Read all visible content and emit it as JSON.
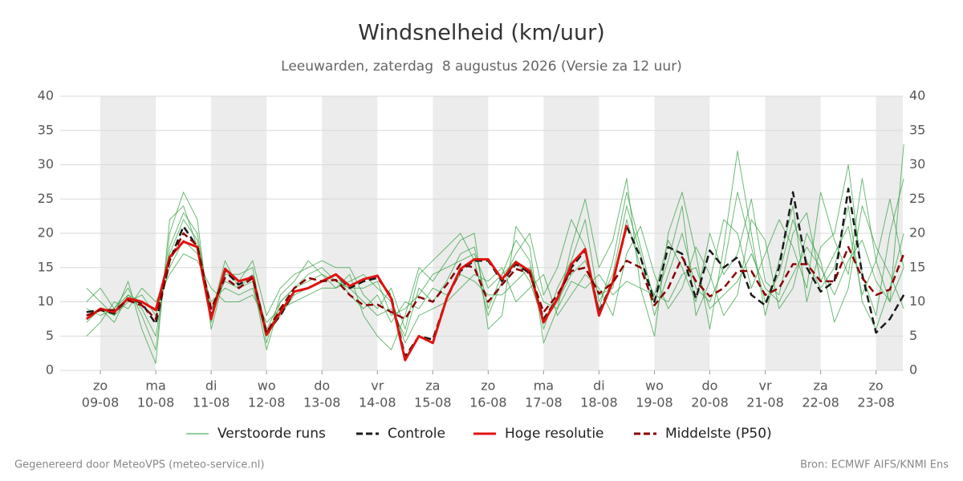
{
  "chart_data": {
    "type": "line",
    "title": "Windsnelheid (km/uur)",
    "subtitle": "Leeuwarden, zaterdag  8 augustus 2026 (Versie za 12 uur)",
    "footer_left": "Gegenereerd door MeteoVPS (meteo-service.nl)",
    "footer_right": "Bron: ECMWF AIFS/KNMI Ens",
    "x": [
      -6,
      0,
      6,
      12,
      18,
      24,
      30,
      36,
      42,
      48,
      54,
      60,
      66,
      72,
      78,
      84,
      90,
      96,
      102,
      108,
      114,
      120,
      126,
      132,
      138,
      144,
      150,
      156,
      162,
      168,
      174,
      180,
      186,
      192,
      198,
      204,
      210,
      216,
      222,
      228,
      234,
      240,
      246,
      252,
      258,
      264,
      270,
      276,
      282,
      288,
      294,
      300,
      306,
      312,
      318,
      324,
      330,
      336,
      342,
      348
    ],
    "xlim": [
      -17.4,
      347.6
    ],
    "xticks": [
      {
        "value": 0,
        "day": "zo",
        "date": "09-08"
      },
      {
        "value": 24,
        "day": "ma",
        "date": "10-08"
      },
      {
        "value": 48,
        "day": "di",
        "date": "11-08"
      },
      {
        "value": 72,
        "day": "wo",
        "date": "12-08"
      },
      {
        "value": 96,
        "day": "do",
        "date": "13-08"
      },
      {
        "value": 120,
        "day": "vr",
        "date": "14-08"
      },
      {
        "value": 144,
        "day": "za",
        "date": "15-08"
      },
      {
        "value": 168,
        "day": "zo",
        "date": "16-08"
      },
      {
        "value": 192,
        "day": "ma",
        "date": "17-08"
      },
      {
        "value": 216,
        "day": "di",
        "date": "18-08"
      },
      {
        "value": 240,
        "day": "wo",
        "date": "19-08"
      },
      {
        "value": 264,
        "day": "do",
        "date": "20-08"
      },
      {
        "value": 288,
        "day": "vr",
        "date": "21-08"
      },
      {
        "value": 312,
        "day": "za",
        "date": "22-08"
      },
      {
        "value": 336,
        "day": "zo",
        "date": "23-08"
      }
    ],
    "shade_alternate_days": true,
    "shade_color": "#ececec",
    "ylim": [
      0,
      40
    ],
    "yticks": [
      0,
      5,
      10,
      15,
      20,
      25,
      30,
      35,
      40
    ],
    "mirror_y_ticks": true,
    "grid": true,
    "series": [
      {
        "name": "Verstoorde runs",
        "color": "#2e9e3a",
        "members": [
          [
            9,
            8,
            9,
            11,
            9,
            5,
            18,
            23,
            20,
            8,
            16,
            12,
            14,
            6,
            10,
            12,
            14,
            15,
            13,
            12,
            10,
            8,
            9,
            5,
            12,
            10,
            13,
            17,
            18,
            9,
            14,
            19,
            16,
            6,
            12,
            16,
            22,
            10,
            14,
            24,
            17,
            8,
            14,
            20,
            12,
            10,
            15,
            26,
            18,
            10,
            14,
            22,
            16,
            12,
            15,
            24,
            10,
            6,
            12,
            20
          ],
          [
            7,
            9,
            8,
            10,
            11,
            8,
            15,
            19,
            17,
            10,
            12,
            11,
            12,
            5,
            8,
            11,
            12,
            13,
            14,
            11,
            9,
            11,
            7,
            10,
            9,
            12,
            11,
            14,
            13,
            11,
            11,
            13,
            15,
            10,
            9,
            13,
            12,
            14,
            11,
            13,
            12,
            11,
            10,
            14,
            15,
            9,
            11,
            13,
            17,
            12,
            10,
            14,
            18,
            15,
            11,
            16,
            19,
            13,
            10,
            15
          ],
          [
            10,
            12,
            9,
            12,
            8,
            3,
            20,
            26,
            22,
            6,
            14,
            14,
            15,
            4,
            11,
            13,
            16,
            14,
            12,
            14,
            8,
            5,
            3,
            8,
            15,
            13,
            16,
            19,
            20,
            6,
            8,
            21,
            18,
            4,
            9,
            18,
            25,
            15,
            19,
            28,
            12,
            5,
            20,
            26,
            17,
            6,
            18,
            32,
            20,
            8,
            16,
            24,
            10,
            18,
            20,
            30,
            14,
            8,
            20,
            28
          ],
          [
            5,
            7,
            10,
            9,
            12,
            10,
            14,
            17,
            16,
            12,
            10,
            10,
            11,
            7,
            9,
            10,
            11,
            12,
            12,
            13,
            14,
            12,
            10,
            4,
            8,
            9,
            10,
            12,
            14,
            13,
            15,
            10,
            12,
            14,
            8,
            11,
            14,
            12,
            8,
            17,
            21,
            14,
            9,
            12,
            18,
            14,
            8,
            11,
            22,
            19,
            9,
            12,
            20,
            16,
            7,
            12,
            24,
            18,
            14,
            9
          ],
          [
            12,
            10,
            8,
            13,
            6,
            1,
            22,
            24,
            18,
            7,
            15,
            13,
            16,
            8,
            12,
            14,
            15,
            16,
            15,
            15,
            11,
            9,
            12,
            6,
            14,
            16,
            18,
            20,
            16,
            8,
            13,
            17,
            20,
            11,
            15,
            22,
            18,
            9,
            16,
            26,
            18,
            10,
            16,
            24,
            8,
            13,
            22,
            20,
            12,
            17,
            22,
            18,
            12,
            26,
            19,
            14,
            28,
            16,
            10,
            33
          ],
          [
            8,
            9,
            7,
            11,
            10,
            9,
            17,
            22,
            19,
            9,
            13,
            12,
            13,
            3,
            10,
            12,
            13,
            14,
            13,
            12,
            12,
            13,
            8,
            9,
            11,
            14,
            15,
            16,
            17,
            12,
            14,
            16,
            13,
            7,
            10,
            14,
            16,
            11,
            12,
            22,
            15,
            11,
            19,
            15,
            10,
            20,
            14,
            17,
            25,
            13,
            11,
            20,
            23,
            13,
            17,
            21,
            11,
            16,
            25,
            15
          ]
        ]
      },
      {
        "name": "Controle",
        "color": "#1a1a1a",
        "dashed": true,
        "values": [
          8.5,
          8.8,
          8.3,
          10.5,
          9.8,
          6.8,
          16,
          21,
          18,
          8,
          14.5,
          12.5,
          13.8,
          5.5,
          8,
          11.5,
          12,
          13,
          14,
          12,
          13,
          13.5,
          10.8,
          2,
          5,
          4.5,
          10.5,
          14.5,
          16,
          16,
          13,
          15.5,
          14.2,
          7.5,
          10.5,
          15,
          17.5,
          8.5,
          13,
          21,
          16.5,
          10,
          18,
          17,
          10.5,
          17.5,
          15,
          16.5,
          11,
          9.5,
          15,
          26,
          15,
          11.5,
          13,
          26.5,
          14,
          5.5,
          7.5,
          11
        ]
      },
      {
        "name": "Hoge resolutie",
        "color": "#e0120f",
        "values": [
          7.5,
          9,
          8.5,
          10.5,
          10,
          8.8,
          16.5,
          18.8,
          18,
          7.5,
          14.8,
          13,
          13.6,
          5.2,
          8.5,
          11.5,
          12,
          13,
          14,
          12.3,
          13.3,
          13.8,
          10.5,
          1.5,
          5,
          4,
          10.5,
          14.8,
          16.2,
          16.2,
          13.3,
          15.8,
          14.5,
          7,
          10.5,
          15.5,
          17.7,
          8,
          13,
          21.2,
          null,
          null,
          null,
          null,
          null,
          null,
          null,
          null,
          null,
          null,
          null,
          null,
          null,
          null,
          null,
          null,
          null,
          null,
          null,
          null
        ]
      },
      {
        "name": "Middelste (P50)",
        "color": "#8b0000",
        "dashed": true,
        "values": [
          8,
          8.8,
          8.8,
          10.2,
          9.5,
          7.5,
          16,
          20,
          18.2,
          9,
          13.5,
          12,
          13.5,
          5.5,
          9,
          12,
          13.5,
          13,
          13.2,
          11,
          9.5,
          9.6,
          8.5,
          7.5,
          10.7,
          10,
          12.5,
          15.5,
          15,
          10,
          12.5,
          14.8,
          14.2,
          8.5,
          11,
          14.5,
          15,
          11.2,
          12.8,
          16,
          15,
          9.5,
          12,
          16.5,
          13,
          10.8,
          12,
          14.5,
          14.5,
          11,
          12,
          15.5,
          15.5,
          13,
          13,
          18,
          13.5,
          11,
          11.8,
          17
        ]
      }
    ]
  }
}
